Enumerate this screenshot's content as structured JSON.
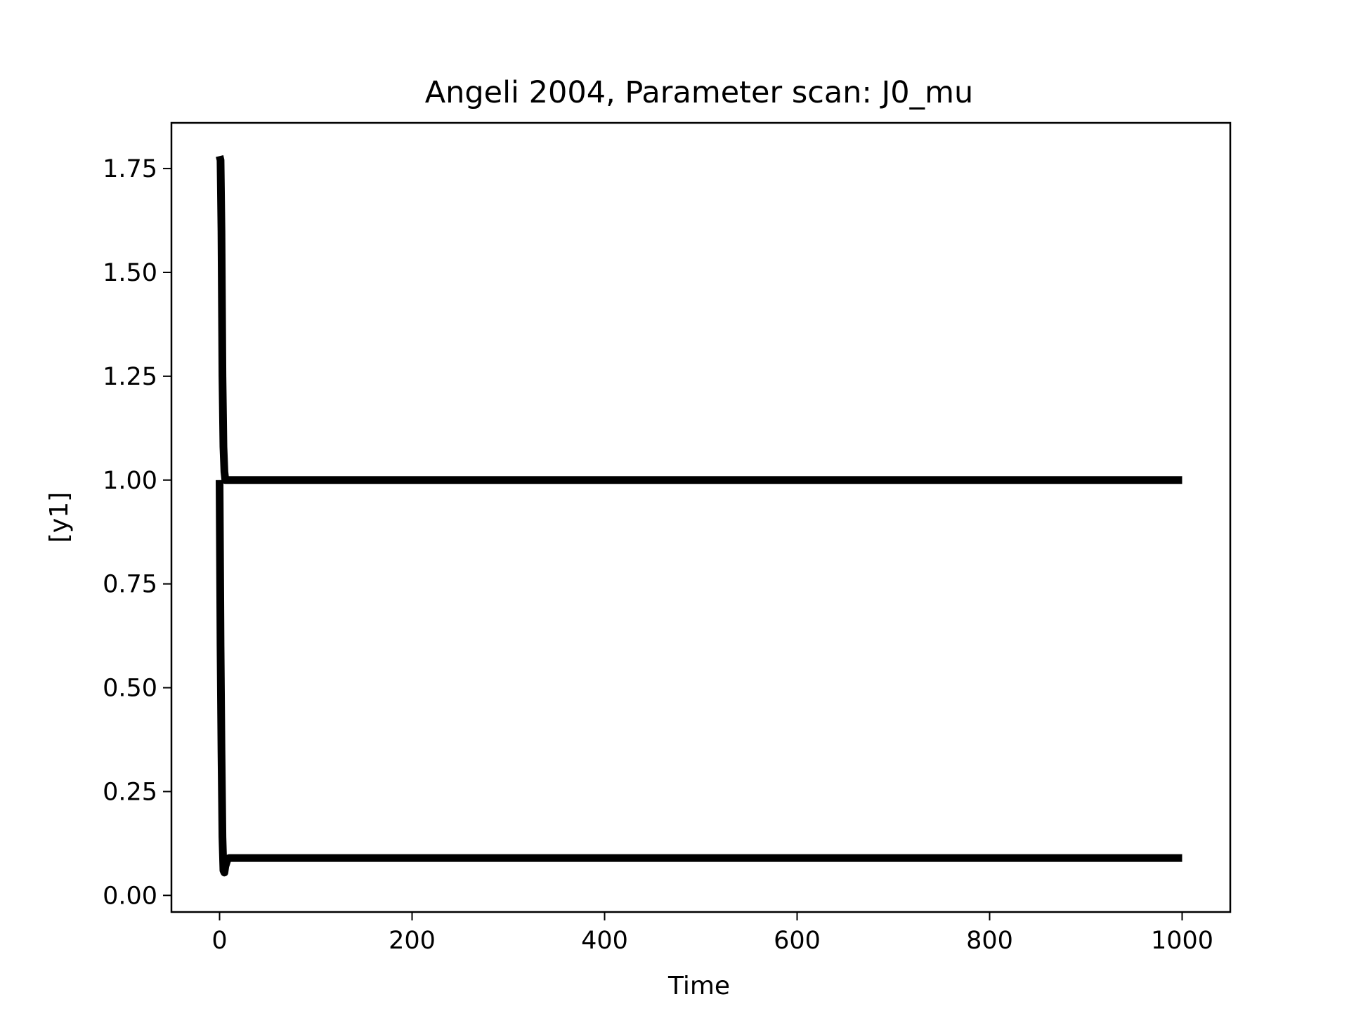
{
  "chart_data": {
    "type": "line",
    "title": "Angeli 2004, Parameter scan: J0_mu",
    "xlabel": "Time",
    "ylabel": "[y1]",
    "xlim": [
      -50,
      1050
    ],
    "ylim": [
      -0.04,
      1.86
    ],
    "xticks": [
      0,
      200,
      400,
      600,
      800,
      1000
    ],
    "xtick_labels": [
      "0",
      "200",
      "400",
      "600",
      "800",
      "1000"
    ],
    "yticks": [
      0.0,
      0.25,
      0.5,
      0.75,
      1.0,
      1.25,
      1.5,
      1.75
    ],
    "ytick_labels": [
      "0.00",
      "0.25",
      "0.50",
      "0.75",
      "1.00",
      "1.25",
      "1.50",
      "1.75"
    ],
    "grid": false,
    "legend": "none",
    "line_color": "#000000",
    "series": [
      {
        "x": [
          0,
          1,
          2,
          3,
          4,
          5,
          6,
          8,
          10,
          20,
          50,
          100,
          200,
          400,
          600,
          800,
          1000
        ],
        "y": [
          1.78,
          1.77,
          1.6,
          1.25,
          1.08,
          1.02,
          1.0,
          1.0,
          1.0,
          1.0,
          1.0,
          1.0,
          1.0,
          1.0,
          1.0,
          1.0,
          1.0
        ]
      },
      {
        "x": [
          0,
          1,
          2,
          3,
          4,
          5,
          6,
          8,
          10,
          20,
          50,
          100,
          200,
          400,
          600,
          800,
          1000
        ],
        "y": [
          1.0,
          0.6,
          0.35,
          0.14,
          0.06,
          0.055,
          0.07,
          0.085,
          0.09,
          0.09,
          0.09,
          0.09,
          0.09,
          0.09,
          0.09,
          0.09,
          0.09
        ]
      }
    ]
  }
}
